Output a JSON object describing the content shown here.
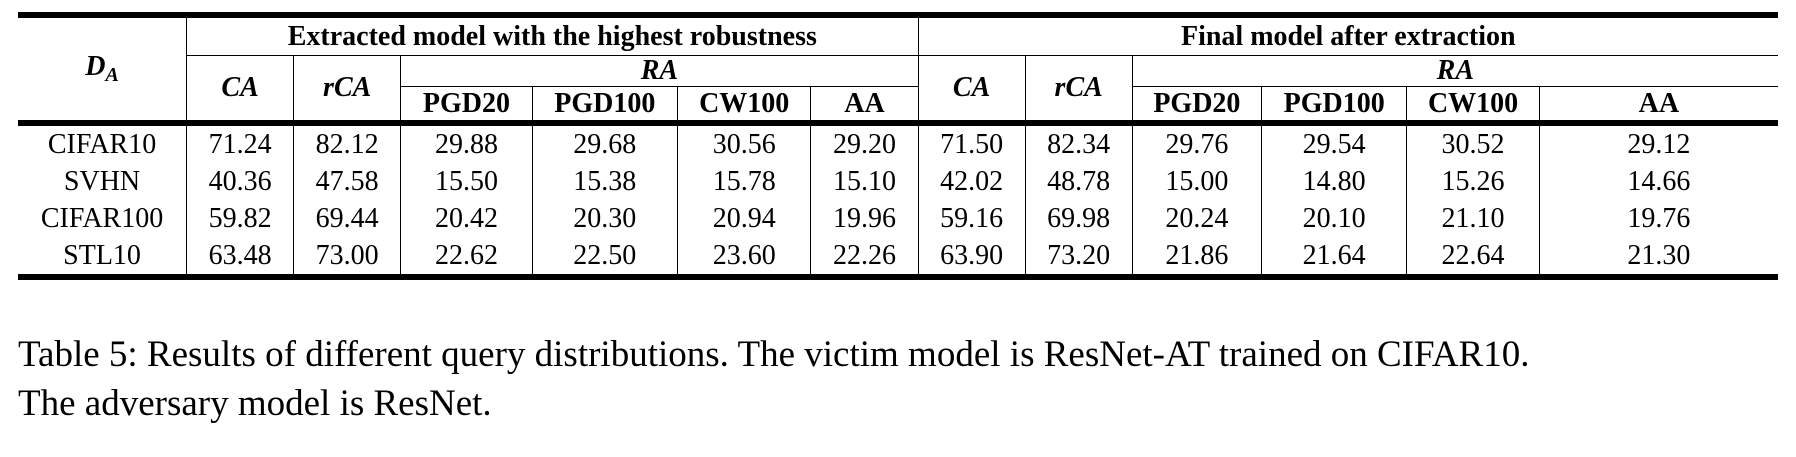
{
  "table": {
    "corner_label": "D",
    "corner_sub": "A",
    "group1_label": "Extracted model with the highest robustness",
    "group2_label": "Final model after extraction",
    "ra_label": "RA",
    "metric_ca": "CA",
    "metric_rca": "rCA",
    "attacks": [
      "PGD20",
      "PGD100",
      "CW100",
      "AA"
    ],
    "rows": [
      {
        "dataset": "CIFAR10",
        "values": [
          "71.24",
          "82.12",
          "29.88",
          "29.68",
          "30.56",
          "29.20",
          "71.50",
          "82.34",
          "29.76",
          "29.54",
          "30.52",
          "29.12"
        ]
      },
      {
        "dataset": "SVHN",
        "values": [
          "40.36",
          "47.58",
          "15.50",
          "15.38",
          "15.78",
          "15.10",
          "42.02",
          "48.78",
          "15.00",
          "14.80",
          "15.26",
          "14.66"
        ]
      },
      {
        "dataset": "CIFAR100",
        "values": [
          "59.82",
          "69.44",
          "20.42",
          "20.30",
          "20.94",
          "19.96",
          "59.16",
          "69.98",
          "20.24",
          "20.10",
          "21.10",
          "19.76"
        ]
      },
      {
        "dataset": "STL10",
        "values": [
          "63.48",
          "73.00",
          "22.62",
          "22.50",
          "23.60",
          "22.26",
          "63.90",
          "73.20",
          "21.86",
          "21.64",
          "22.64",
          "21.30"
        ]
      }
    ]
  },
  "caption": {
    "line1": "Table 5: Results of different query distributions. The victim model is ResNet-AT trained on CIFAR10.",
    "line2": "The adversary model is ResNet."
  }
}
